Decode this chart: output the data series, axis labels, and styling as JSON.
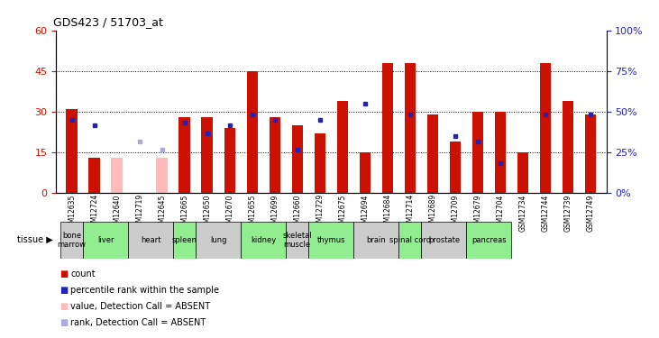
{
  "title": "GDS423 / 51703_at",
  "samples": [
    "GSM12635",
    "GSM12724",
    "GSM12640",
    "GSM12719",
    "GSM12645",
    "GSM12665",
    "GSM12650",
    "GSM12670",
    "GSM12655",
    "GSM12699",
    "GSM12660",
    "GSM12729",
    "GSM12675",
    "GSM12694",
    "GSM12684",
    "GSM12714",
    "GSM12689",
    "GSM12709",
    "GSM12679",
    "GSM12704",
    "GSM12734",
    "GSM12744",
    "GSM12739",
    "GSM12749"
  ],
  "tissues": [
    {
      "label": "bone\nmarrow",
      "span": [
        0,
        1
      ],
      "color": "#cccccc"
    },
    {
      "label": "liver",
      "span": [
        1,
        3
      ],
      "color": "#90EE90"
    },
    {
      "label": "heart",
      "span": [
        3,
        5
      ],
      "color": "#cccccc"
    },
    {
      "label": "spleen",
      "span": [
        5,
        6
      ],
      "color": "#90EE90"
    },
    {
      "label": "lung",
      "span": [
        6,
        8
      ],
      "color": "#cccccc"
    },
    {
      "label": "kidney",
      "span": [
        8,
        10
      ],
      "color": "#90EE90"
    },
    {
      "label": "skeletal\nmuscle",
      "span": [
        10,
        11
      ],
      "color": "#cccccc"
    },
    {
      "label": "thymus",
      "span": [
        11,
        13
      ],
      "color": "#90EE90"
    },
    {
      "label": "brain",
      "span": [
        13,
        15
      ],
      "color": "#cccccc"
    },
    {
      "label": "spinal cord",
      "span": [
        15,
        16
      ],
      "color": "#90EE90"
    },
    {
      "label": "prostate",
      "span": [
        16,
        18
      ],
      "color": "#cccccc"
    },
    {
      "label": "pancreas",
      "span": [
        18,
        20
      ],
      "color": "#90EE90"
    }
  ],
  "red_bars": [
    31,
    13,
    null,
    null,
    null,
    28,
    28,
    24,
    45,
    28,
    25,
    22,
    34,
    15,
    48,
    48,
    29,
    19,
    30,
    30,
    15,
    48,
    34,
    29
  ],
  "blue_squares": [
    27,
    25,
    null,
    null,
    null,
    26,
    22,
    25,
    29,
    27,
    16,
    27,
    null,
    33,
    null,
    29,
    null,
    21,
    19,
    11,
    null,
    29,
    null,
    29
  ],
  "pink_bars": [
    null,
    null,
    13,
    null,
    13,
    null,
    null,
    null,
    null,
    null,
    null,
    null,
    null,
    null,
    null,
    null,
    null,
    null,
    null,
    null,
    null,
    null,
    null,
    null
  ],
  "lavender_squares": [
    null,
    null,
    null,
    19,
    16,
    null,
    null,
    null,
    null,
    null,
    null,
    null,
    null,
    null,
    null,
    null,
    null,
    null,
    null,
    null,
    null,
    null,
    null,
    null
  ],
  "absent_indices": [
    2,
    3,
    4
  ],
  "ylim_left": [
    0,
    60
  ],
  "ylim_right": [
    0,
    100
  ],
  "yticks_left": [
    0,
    15,
    30,
    45,
    60
  ],
  "yticks_right": [
    0,
    25,
    50,
    75,
    100
  ],
  "grid_lines": [
    15,
    30,
    45
  ],
  "bar_width": 0.5,
  "bar_color": "#cc1100",
  "blue_color": "#2222bb",
  "pink_color": "#ffbbbb",
  "lavender_color": "#aaaadd",
  "tissue_arrow": "tissue ▶",
  "legend_items": [
    {
      "color": "#cc1100",
      "label": "count"
    },
    {
      "color": "#2222bb",
      "label": "percentile rank within the sample"
    },
    {
      "color": "#ffbbbb",
      "label": "value, Detection Call = ABSENT"
    },
    {
      "color": "#aaaadd",
      "label": "rank, Detection Call = ABSENT"
    }
  ]
}
